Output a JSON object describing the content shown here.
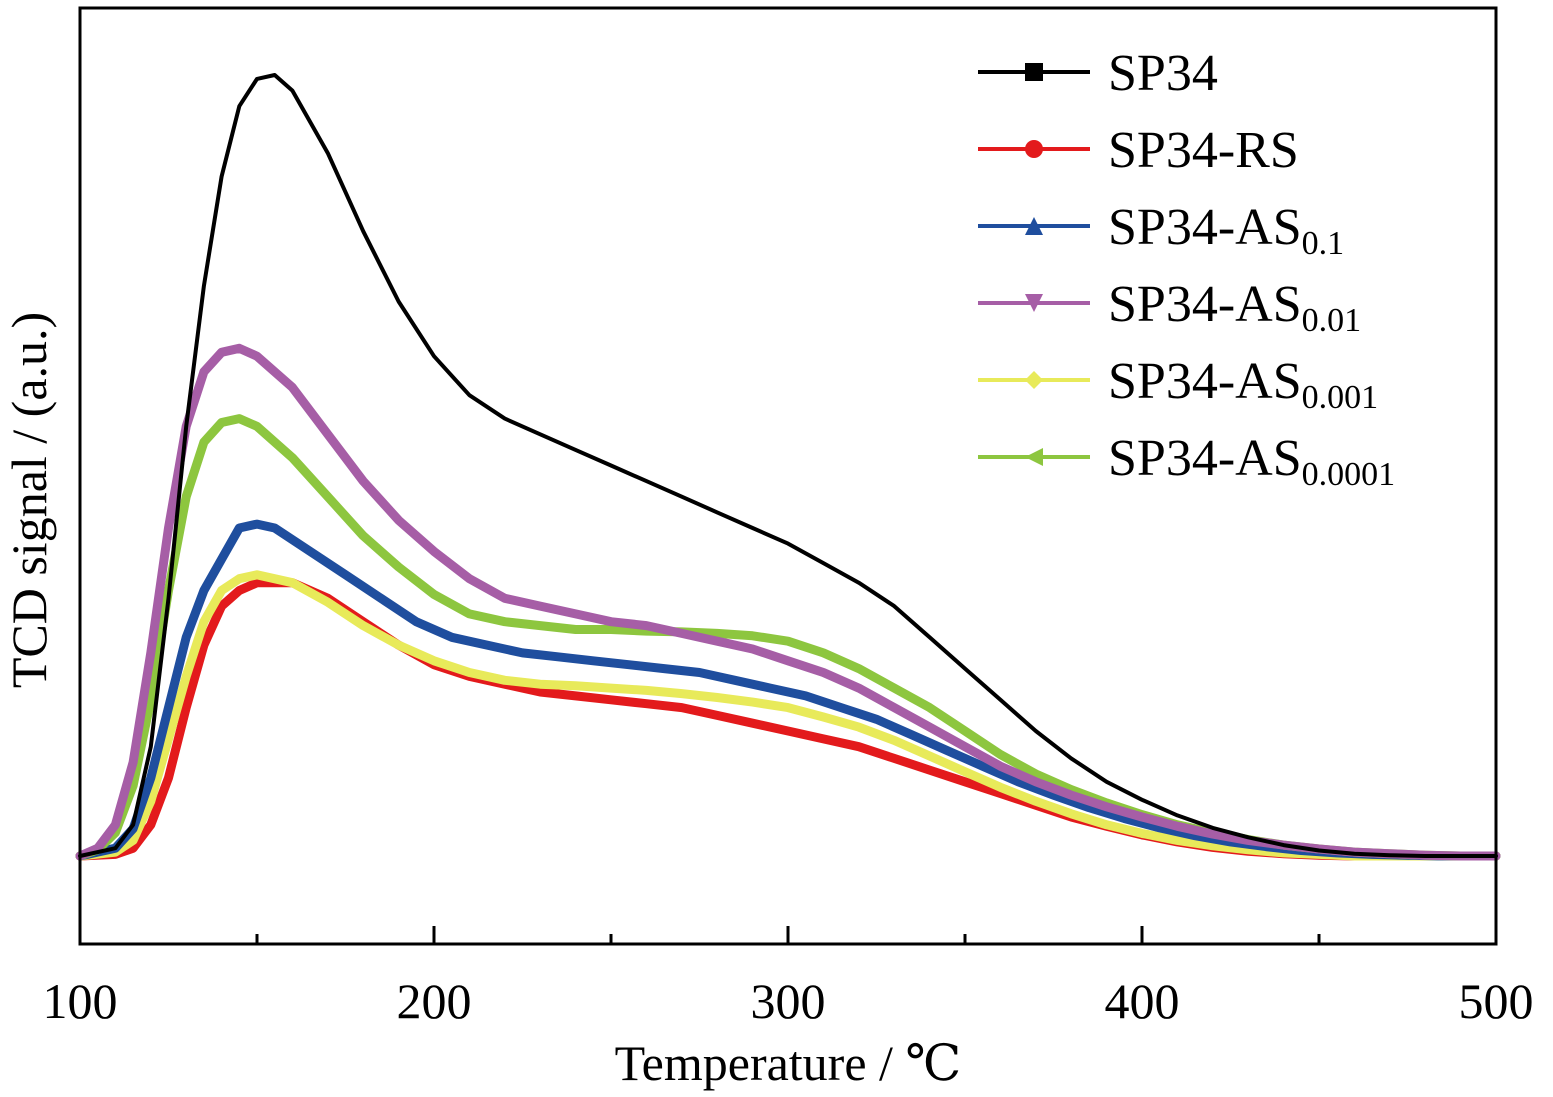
{
  "chart_data": {
    "type": "line",
    "xlabel": "Temperature / ℃",
    "ylabel": "TCD signal / (a.u.)",
    "xlim": [
      100,
      500
    ],
    "xticks": [
      100,
      200,
      300,
      400,
      500
    ],
    "y_tick_labels": false,
    "grid": false,
    "legend_position": "top-right",
    "series": [
      {
        "name": "SP34",
        "label_main": "SP34",
        "label_sub": "",
        "color": "#000000",
        "marker": "square",
        "points": [
          [
            100,
            0
          ],
          [
            110,
            0.01
          ],
          [
            115,
            0.04
          ],
          [
            120,
            0.14
          ],
          [
            125,
            0.33
          ],
          [
            130,
            0.55
          ],
          [
            135,
            0.73
          ],
          [
            140,
            0.87
          ],
          [
            145,
            0.96
          ],
          [
            150,
            0.995
          ],
          [
            155,
            1.0
          ],
          [
            160,
            0.98
          ],
          [
            170,
            0.9
          ],
          [
            180,
            0.8
          ],
          [
            190,
            0.71
          ],
          [
            200,
            0.64
          ],
          [
            210,
            0.59
          ],
          [
            220,
            0.56
          ],
          [
            230,
            0.54
          ],
          [
            240,
            0.52
          ],
          [
            250,
            0.5
          ],
          [
            260,
            0.48
          ],
          [
            270,
            0.46
          ],
          [
            280,
            0.44
          ],
          [
            290,
            0.42
          ],
          [
            300,
            0.4
          ],
          [
            310,
            0.375
          ],
          [
            320,
            0.35
          ],
          [
            330,
            0.32
          ],
          [
            340,
            0.28
          ],
          [
            350,
            0.24
          ],
          [
            360,
            0.2
          ],
          [
            370,
            0.16
          ],
          [
            380,
            0.125
          ],
          [
            390,
            0.095
          ],
          [
            400,
            0.072
          ],
          [
            410,
            0.052
          ],
          [
            420,
            0.036
          ],
          [
            430,
            0.024
          ],
          [
            440,
            0.014
          ],
          [
            450,
            0.007
          ],
          [
            460,
            0.003
          ],
          [
            470,
            0.001
          ],
          [
            480,
            0
          ],
          [
            490,
            0
          ],
          [
            500,
            0
          ]
        ]
      },
      {
        "name": "SP34-RS",
        "label_main": "SP34-RS",
        "label_sub": "",
        "color": "#e31a1c",
        "marker": "circle",
        "points": [
          [
            100,
            0
          ],
          [
            110,
            0.002
          ],
          [
            115,
            0.01
          ],
          [
            120,
            0.04
          ],
          [
            125,
            0.1
          ],
          [
            130,
            0.19
          ],
          [
            135,
            0.27
          ],
          [
            140,
            0.32
          ],
          [
            145,
            0.34
          ],
          [
            150,
            0.35
          ],
          [
            160,
            0.35
          ],
          [
            170,
            0.33
          ],
          [
            180,
            0.3
          ],
          [
            190,
            0.27
          ],
          [
            200,
            0.245
          ],
          [
            210,
            0.23
          ],
          [
            220,
            0.22
          ],
          [
            230,
            0.21
          ],
          [
            240,
            0.205
          ],
          [
            250,
            0.2
          ],
          [
            260,
            0.195
          ],
          [
            270,
            0.19
          ],
          [
            280,
            0.18
          ],
          [
            290,
            0.17
          ],
          [
            300,
            0.16
          ],
          [
            310,
            0.15
          ],
          [
            320,
            0.14
          ],
          [
            330,
            0.125
          ],
          [
            340,
            0.11
          ],
          [
            350,
            0.095
          ],
          [
            360,
            0.08
          ],
          [
            370,
            0.065
          ],
          [
            380,
            0.05
          ],
          [
            390,
            0.038
          ],
          [
            400,
            0.027
          ],
          [
            410,
            0.018
          ],
          [
            420,
            0.011
          ],
          [
            430,
            0.006
          ],
          [
            440,
            0.003
          ],
          [
            450,
            0.001
          ],
          [
            460,
            0
          ],
          [
            470,
            0
          ],
          [
            480,
            0
          ],
          [
            490,
            0
          ],
          [
            500,
            0
          ]
        ]
      },
      {
        "name": "SP34-AS0.1",
        "label_main": "SP34-AS",
        "label_sub": "0.1",
        "color": "#1f4e9e",
        "marker": "triangle-up",
        "points": [
          [
            100,
            0
          ],
          [
            110,
            0.01
          ],
          [
            115,
            0.035
          ],
          [
            120,
            0.1
          ],
          [
            125,
            0.19
          ],
          [
            130,
            0.28
          ],
          [
            135,
            0.34
          ],
          [
            140,
            0.38
          ],
          [
            145,
            0.42
          ],
          [
            150,
            0.425
          ],
          [
            155,
            0.42
          ],
          [
            165,
            0.39
          ],
          [
            175,
            0.36
          ],
          [
            185,
            0.33
          ],
          [
            195,
            0.3
          ],
          [
            205,
            0.28
          ],
          [
            215,
            0.27
          ],
          [
            225,
            0.26
          ],
          [
            235,
            0.255
          ],
          [
            245,
            0.25
          ],
          [
            255,
            0.245
          ],
          [
            265,
            0.24
          ],
          [
            275,
            0.235
          ],
          [
            285,
            0.225
          ],
          [
            295,
            0.215
          ],
          [
            305,
            0.205
          ],
          [
            315,
            0.19
          ],
          [
            325,
            0.175
          ],
          [
            335,
            0.155
          ],
          [
            345,
            0.135
          ],
          [
            355,
            0.115
          ],
          [
            365,
            0.095
          ],
          [
            375,
            0.078
          ],
          [
            385,
            0.062
          ],
          [
            395,
            0.048
          ],
          [
            405,
            0.036
          ],
          [
            415,
            0.026
          ],
          [
            425,
            0.018
          ],
          [
            435,
            0.012
          ],
          [
            445,
            0.007
          ],
          [
            455,
            0.004
          ],
          [
            465,
            0.002
          ],
          [
            475,
            0.001
          ],
          [
            485,
            0
          ],
          [
            500,
            0
          ]
        ]
      },
      {
        "name": "SP34-AS0.01",
        "label_main": "SP34-AS",
        "label_sub": "0.01",
        "color": "#a65ea6",
        "marker": "triangle-down",
        "points": [
          [
            100,
            0
          ],
          [
            105,
            0.01
          ],
          [
            110,
            0.04
          ],
          [
            115,
            0.12
          ],
          [
            120,
            0.26
          ],
          [
            125,
            0.42
          ],
          [
            130,
            0.55
          ],
          [
            135,
            0.62
          ],
          [
            140,
            0.645
          ],
          [
            145,
            0.65
          ],
          [
            150,
            0.64
          ],
          [
            160,
            0.6
          ],
          [
            170,
            0.54
          ],
          [
            180,
            0.48
          ],
          [
            190,
            0.43
          ],
          [
            200,
            0.39
          ],
          [
            210,
            0.355
          ],
          [
            220,
            0.33
          ],
          [
            230,
            0.32
          ],
          [
            240,
            0.31
          ],
          [
            250,
            0.3
          ],
          [
            260,
            0.295
          ],
          [
            270,
            0.285
          ],
          [
            280,
            0.275
          ],
          [
            290,
            0.265
          ],
          [
            300,
            0.25
          ],
          [
            310,
            0.235
          ],
          [
            320,
            0.215
          ],
          [
            330,
            0.19
          ],
          [
            340,
            0.165
          ],
          [
            350,
            0.14
          ],
          [
            360,
            0.115
          ],
          [
            370,
            0.095
          ],
          [
            380,
            0.078
          ],
          [
            390,
            0.063
          ],
          [
            400,
            0.05
          ],
          [
            410,
            0.038
          ],
          [
            420,
            0.028
          ],
          [
            430,
            0.02
          ],
          [
            440,
            0.014
          ],
          [
            450,
            0.009
          ],
          [
            460,
            0.005
          ],
          [
            470,
            0.003
          ],
          [
            480,
            0.001
          ],
          [
            490,
            0
          ],
          [
            500,
            0
          ]
        ]
      },
      {
        "name": "SP34-AS0.001",
        "label_main": "SP34-AS",
        "label_sub": "0.001",
        "color": "#e8ea5a",
        "marker": "diamond",
        "points": [
          [
            100,
            0
          ],
          [
            110,
            0.005
          ],
          [
            115,
            0.02
          ],
          [
            120,
            0.07
          ],
          [
            125,
            0.15
          ],
          [
            130,
            0.23
          ],
          [
            135,
            0.3
          ],
          [
            140,
            0.34
          ],
          [
            145,
            0.355
          ],
          [
            150,
            0.36
          ],
          [
            160,
            0.35
          ],
          [
            170,
            0.325
          ],
          [
            180,
            0.295
          ],
          [
            190,
            0.27
          ],
          [
            200,
            0.25
          ],
          [
            210,
            0.235
          ],
          [
            220,
            0.225
          ],
          [
            230,
            0.22
          ],
          [
            240,
            0.218
          ],
          [
            250,
            0.215
          ],
          [
            260,
            0.212
          ],
          [
            270,
            0.208
          ],
          [
            280,
            0.203
          ],
          [
            290,
            0.197
          ],
          [
            300,
            0.19
          ],
          [
            310,
            0.178
          ],
          [
            320,
            0.165
          ],
          [
            330,
            0.148
          ],
          [
            340,
            0.128
          ],
          [
            350,
            0.108
          ],
          [
            360,
            0.088
          ],
          [
            370,
            0.07
          ],
          [
            380,
            0.054
          ],
          [
            390,
            0.04
          ],
          [
            400,
            0.029
          ],
          [
            410,
            0.02
          ],
          [
            420,
            0.013
          ],
          [
            430,
            0.008
          ],
          [
            440,
            0.004
          ],
          [
            450,
            0.002
          ],
          [
            460,
            0
          ],
          [
            470,
            0
          ],
          [
            480,
            0
          ],
          [
            490,
            0
          ],
          [
            500,
            0
          ]
        ]
      },
      {
        "name": "SP34-AS0.0001",
        "label_main": "SP34-AS",
        "label_sub": "0.0001",
        "color": "#8dc63f",
        "marker": "triangle-left",
        "points": [
          [
            100,
            0
          ],
          [
            105,
            0.008
          ],
          [
            110,
            0.03
          ],
          [
            115,
            0.09
          ],
          [
            120,
            0.2
          ],
          [
            125,
            0.34
          ],
          [
            130,
            0.46
          ],
          [
            135,
            0.53
          ],
          [
            140,
            0.555
          ],
          [
            145,
            0.56
          ],
          [
            150,
            0.55
          ],
          [
            160,
            0.51
          ],
          [
            170,
            0.46
          ],
          [
            180,
            0.41
          ],
          [
            190,
            0.37
          ],
          [
            200,
            0.335
          ],
          [
            210,
            0.31
          ],
          [
            220,
            0.3
          ],
          [
            230,
            0.295
          ],
          [
            240,
            0.29
          ],
          [
            250,
            0.29
          ],
          [
            260,
            0.288
          ],
          [
            270,
            0.287
          ],
          [
            280,
            0.285
          ],
          [
            290,
            0.282
          ],
          [
            300,
            0.275
          ],
          [
            310,
            0.26
          ],
          [
            320,
            0.24
          ],
          [
            330,
            0.215
          ],
          [
            340,
            0.19
          ],
          [
            350,
            0.16
          ],
          [
            360,
            0.13
          ],
          [
            370,
            0.105
          ],
          [
            380,
            0.085
          ],
          [
            390,
            0.068
          ],
          [
            400,
            0.053
          ],
          [
            410,
            0.04
          ],
          [
            420,
            0.03
          ],
          [
            430,
            0.021
          ],
          [
            440,
            0.014
          ],
          [
            450,
            0.009
          ],
          [
            460,
            0.005
          ],
          [
            470,
            0.003
          ],
          [
            480,
            0.001
          ],
          [
            490,
            0
          ],
          [
            500,
            0
          ]
        ]
      }
    ]
  }
}
